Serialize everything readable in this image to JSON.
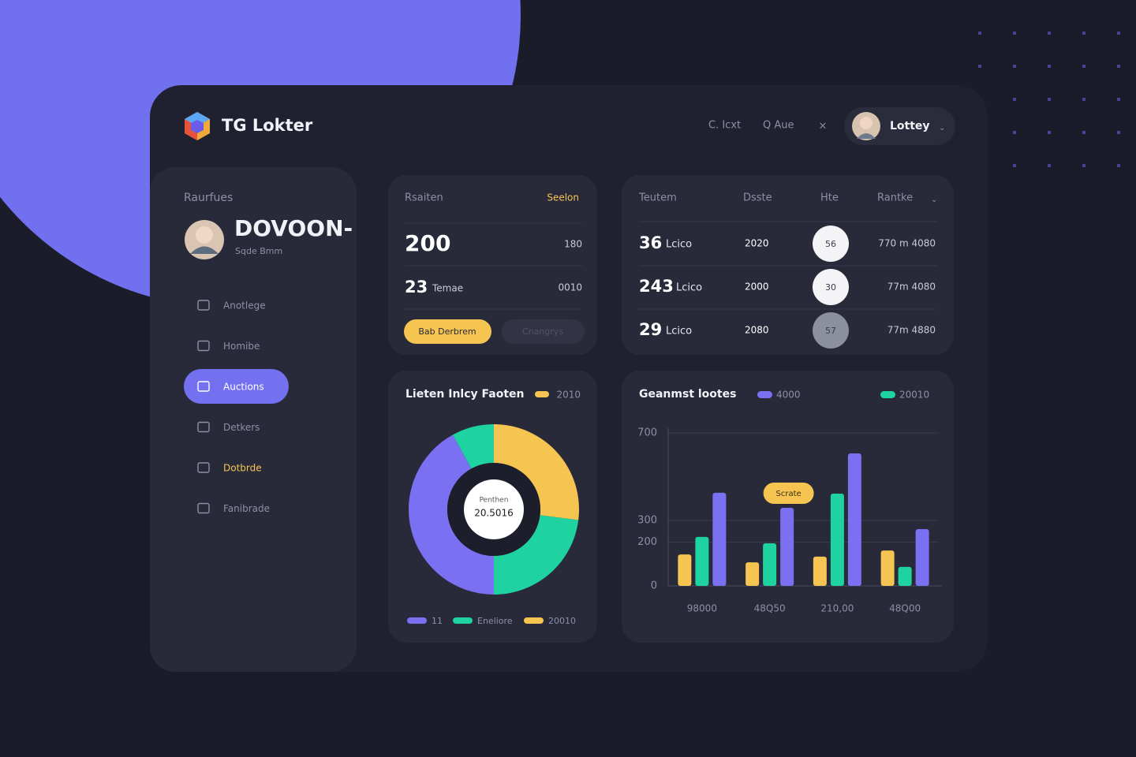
{
  "header": {
    "brand": "TG Lokter",
    "links": [
      "C. Icxt",
      "Q Aue"
    ],
    "user": "Lottey"
  },
  "sidebar": {
    "section": "Raurfues",
    "profile_name": "DOVOON-",
    "profile_sub": "Sqde Bmm",
    "nav": [
      "Anotlege",
      "Homibe",
      "Auctions",
      "Detkers",
      "Dotbrde",
      "Fanibrade"
    ],
    "active_index": 2,
    "highlight_index": 4
  },
  "summary_card": {
    "title": "Rsaiten",
    "action": "Seelon",
    "rows": [
      {
        "value": "200",
        "right": "180"
      },
      {
        "value": "23",
        "unit": "Temae",
        "right": "0010"
      }
    ],
    "buttons": [
      "Bab Derbrem",
      "Cnangrys"
    ]
  },
  "table": {
    "columns": [
      "Teutem",
      "Dsste",
      "Hte",
      "Rantke"
    ],
    "rows": [
      [
        "36",
        "Lcico",
        "2020",
        "56",
        "770 m 4080"
      ],
      [
        "243",
        "Lcico",
        "2000",
        "30",
        "77m 4080"
      ],
      [
        "29",
        "Lcico",
        "2080",
        "57",
        "77m 4880"
      ]
    ]
  },
  "chart_data": [
    {
      "type": "pie",
      "title": "Lieten Inlcy Faoten",
      "badge": "2010",
      "center_label": "Penthen",
      "center_value": "20.5016",
      "values": [
        27,
        23,
        42,
        8
      ],
      "colors": [
        "#f5c451",
        "#1ed3a0",
        "#7b6ff2",
        "#1ed3a0"
      ],
      "legend": [
        {
          "name": "11",
          "color": "#7b6ff2"
        },
        {
          "name": "Eneliore",
          "color": "#1ed3a0"
        },
        {
          "name": "20010",
          "color": "#f5c451"
        }
      ]
    },
    {
      "type": "bar",
      "title": "Geanmst lootes",
      "annotation": "Scrate",
      "categories": [
        "98000",
        "48Q50",
        "210,00",
        "48Q00"
      ],
      "series": [
        {
          "color": "#f5c451",
          "values": [
            144,
            108,
            134,
            162
          ]
        },
        {
          "name": "20010",
          "color": "#1ed3a0",
          "values": [
            224,
            195,
            422,
            87
          ]
        },
        {
          "name": "4000",
          "color": "#7b6ff2",
          "values": [
            426,
            357,
            606,
            260
          ]
        }
      ],
      "ylim": [
        0,
        700
      ],
      "yticks": [
        0,
        200,
        300,
        700
      ],
      "grid": true
    }
  ]
}
